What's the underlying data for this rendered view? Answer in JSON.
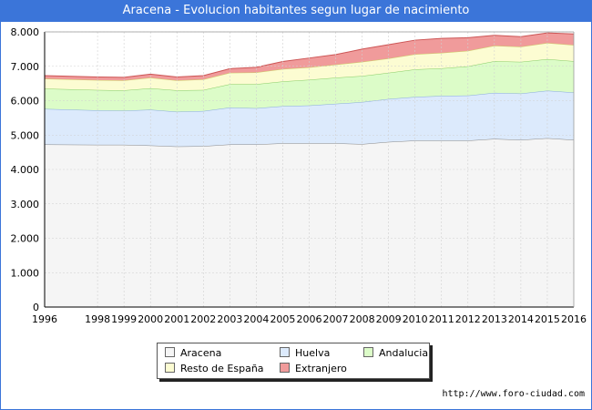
{
  "title": "Aracena - Evolucion habitantes segun lugar de nacimiento",
  "source_url": "http://www.foro-ciudad.com",
  "chart_data": {
    "type": "area",
    "stacked": true,
    "x": [
      1996,
      1998,
      1999,
      2000,
      2001,
      2002,
      2003,
      2004,
      2005,
      2006,
      2007,
      2008,
      2009,
      2010,
      2011,
      2012,
      2013,
      2014,
      2015,
      2016
    ],
    "x_tick_labels": [
      "1996",
      "1998",
      "1999",
      "2000",
      "2001",
      "2002",
      "2003",
      "2004",
      "2005",
      "2006",
      "2007",
      "2008",
      "2009",
      "2010",
      "2011",
      "2012",
      "2013",
      "2014",
      "2015",
      "2016"
    ],
    "y_ticks": [
      0,
      1000,
      2000,
      3000,
      4000,
      5000,
      6000,
      7000,
      8000
    ],
    "y_tick_labels": [
      "0",
      "1.000",
      "2.000",
      "3.000",
      "4.000",
      "5.000",
      "6.000",
      "7.000",
      "8.000"
    ],
    "ylim": [
      0,
      8000
    ],
    "grid": true,
    "legend_position": "bottom",
    "series": [
      {
        "name": "Aracena",
        "color": "#f5f5f5",
        "values": [
          4730,
          4720,
          4720,
          4700,
          4670,
          4680,
          4730,
          4730,
          4760,
          4760,
          4760,
          4740,
          4800,
          4840,
          4840,
          4840,
          4890,
          4860,
          4910,
          4860
        ]
      },
      {
        "name": "Huelva",
        "color": "#dceafc",
        "values": [
          1030,
          1000,
          990,
          1040,
          1010,
          1020,
          1070,
          1050,
          1080,
          1100,
          1150,
          1220,
          1250,
          1270,
          1300,
          1310,
          1340,
          1350,
          1380,
          1380
        ]
      },
      {
        "name": "Andalucia",
        "color": "#dcfcc8",
        "values": [
          590,
          590,
          590,
          620,
          620,
          610,
          680,
          700,
          720,
          750,
          760,
          760,
          760,
          800,
          800,
          850,
          920,
          920,
          920,
          910
        ]
      },
      {
        "name": "Resto de España",
        "color": "#fcfcd2",
        "values": [
          290,
          290,
          290,
          310,
          290,
          310,
          330,
          340,
          360,
          360,
          380,
          410,
          420,
          440,
          450,
          450,
          450,
          440,
          470,
          470
        ]
      },
      {
        "name": "Extranjero",
        "color": "#f09b9b",
        "values": [
          90,
          90,
          90,
          100,
          100,
          110,
          120,
          150,
          220,
          270,
          290,
          370,
          400,
          410,
          420,
          380,
          300,
          290,
          290,
          320
        ]
      }
    ],
    "line_colors": [
      "#888888",
      "#88aadd",
      "#88cc66",
      "#cccc66",
      "#cc5555"
    ]
  }
}
